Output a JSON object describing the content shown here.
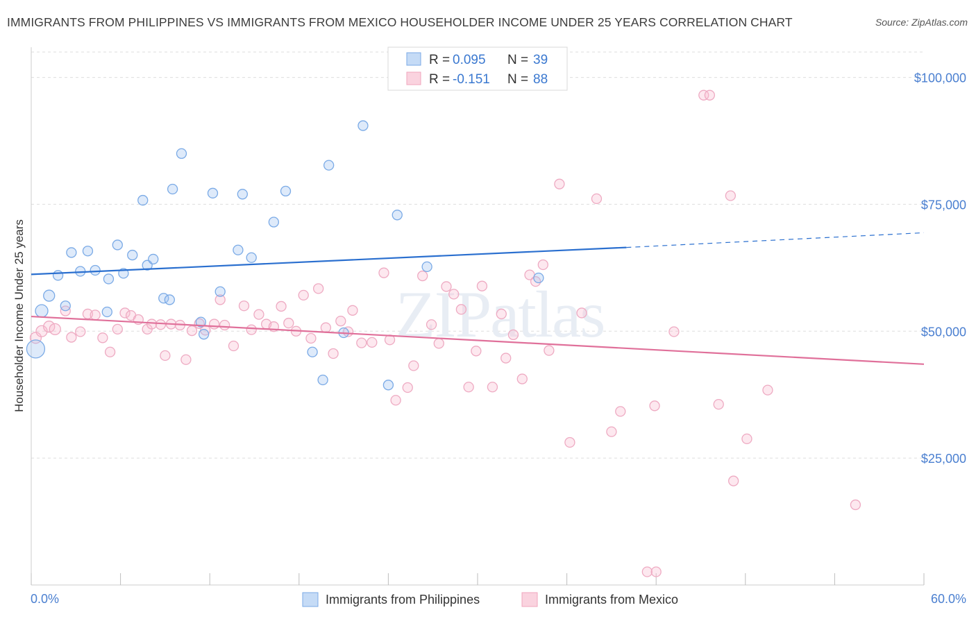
{
  "title": "IMMIGRANTS FROM PHILIPPINES VS IMMIGRANTS FROM MEXICO HOUSEHOLDER INCOME UNDER 25 YEARS CORRELATION CHART",
  "source": "Source: ZipAtlas.com",
  "watermark": "ZIPatlas",
  "colors": {
    "philippines": "#7aaae6",
    "philippines_line": "#2a6fcf",
    "mexico": "#f0a6bd",
    "mexico_line": "#e0709a",
    "axis_label": "#4a7fd0"
  },
  "legend": {
    "rows": [
      {
        "r_label": "R =",
        "r_value": "0.095",
        "n_label": "N =",
        "n_value": "39"
      },
      {
        "r_label": "R =",
        "r_value": "-0.151",
        "n_label": "N =",
        "n_value": "88"
      }
    ]
  },
  "chart_data": {
    "type": "scatter",
    "xlabel": "",
    "ylabel": "Householder Income Under 25 years",
    "xlim": [
      0,
      60
    ],
    "ylim": [
      0,
      105000
    ],
    "x_tick_labels": [
      "0.0%",
      "60.0%"
    ],
    "y_tick_labels": [
      "$100,000",
      "$75,000",
      "$50,000",
      "$25,000"
    ],
    "y_ticks": [
      100000,
      75000,
      50000,
      25000
    ],
    "grid": true,
    "series": [
      {
        "name": "Immigrants from Philippines",
        "trend": {
          "x": [
            0,
            40
          ],
          "y": [
            61200,
            66500
          ],
          "dashed_to": [
            60,
            69400
          ]
        },
        "points": [
          [
            0.3,
            46500,
            26
          ],
          [
            0.7,
            54000,
            18
          ],
          [
            1.2,
            57000,
            16
          ],
          [
            1.8,
            61000,
            14
          ],
          [
            2.3,
            55000,
            14
          ],
          [
            2.7,
            65500,
            14
          ],
          [
            3.3,
            61800,
            14
          ],
          [
            3.8,
            65800,
            14
          ],
          [
            4.3,
            62000,
            14
          ],
          [
            5.1,
            53800,
            14
          ],
          [
            5.2,
            60300,
            14
          ],
          [
            5.8,
            67000,
            14
          ],
          [
            6.2,
            61400,
            14
          ],
          [
            6.8,
            65000,
            14
          ],
          [
            7.5,
            75800,
            14
          ],
          [
            7.8,
            63000,
            14
          ],
          [
            8.2,
            64200,
            14
          ],
          [
            8.9,
            56500,
            14
          ],
          [
            9.3,
            56200,
            14
          ],
          [
            9.5,
            78000,
            14
          ],
          [
            10.1,
            85000,
            14
          ],
          [
            11.4,
            51800,
            14
          ],
          [
            11.6,
            49400,
            14
          ],
          [
            12.2,
            77200,
            14
          ],
          [
            12.7,
            57800,
            14
          ],
          [
            13.9,
            66000,
            14
          ],
          [
            14.2,
            77000,
            14
          ],
          [
            14.8,
            64500,
            14
          ],
          [
            16.3,
            71500,
            14
          ],
          [
            17.1,
            77600,
            14
          ],
          [
            18.9,
            45900,
            14
          ],
          [
            19.6,
            40400,
            14
          ],
          [
            20.0,
            82700,
            14
          ],
          [
            21.0,
            49700,
            14
          ],
          [
            22.3,
            90500,
            14
          ],
          [
            24.0,
            39400,
            14
          ],
          [
            24.6,
            72900,
            14
          ],
          [
            26.6,
            62700,
            14
          ],
          [
            34.1,
            60500,
            14
          ]
        ]
      },
      {
        "name": "Immigrants from Mexico",
        "trend": {
          "x": [
            0,
            60
          ],
          "y": [
            52900,
            43500
          ]
        },
        "points": [
          [
            0.3,
            48700,
            16
          ],
          [
            0.7,
            50000,
            16
          ],
          [
            1.2,
            50900,
            16
          ],
          [
            1.6,
            50400,
            16
          ],
          [
            2.3,
            54000,
            14
          ],
          [
            2.7,
            48800,
            14
          ],
          [
            3.3,
            49900,
            14
          ],
          [
            3.8,
            53400,
            14
          ],
          [
            4.3,
            53200,
            14
          ],
          [
            4.8,
            48700,
            14
          ],
          [
            5.3,
            45900,
            14
          ],
          [
            5.8,
            50400,
            14
          ],
          [
            6.3,
            53600,
            14
          ],
          [
            6.7,
            53100,
            14
          ],
          [
            7.2,
            52300,
            14
          ],
          [
            7.8,
            50400,
            14
          ],
          [
            8.1,
            51400,
            14
          ],
          [
            8.7,
            51300,
            14
          ],
          [
            9.0,
            45200,
            14
          ],
          [
            9.4,
            51400,
            14
          ],
          [
            10.0,
            51200,
            14
          ],
          [
            10.4,
            44400,
            14
          ],
          [
            10.8,
            50100,
            14
          ],
          [
            11.3,
            51500,
            14
          ],
          [
            11.7,
            50200,
            14
          ],
          [
            12.3,
            51400,
            14
          ],
          [
            12.7,
            56200,
            14
          ],
          [
            13.0,
            51200,
            14
          ],
          [
            13.6,
            47100,
            14
          ],
          [
            14.3,
            55000,
            14
          ],
          [
            14.8,
            50300,
            14
          ],
          [
            15.3,
            53300,
            14
          ],
          [
            15.8,
            51400,
            14
          ],
          [
            16.3,
            50900,
            14
          ],
          [
            16.8,
            54900,
            14
          ],
          [
            17.3,
            51600,
            14
          ],
          [
            17.8,
            50000,
            14
          ],
          [
            18.3,
            57100,
            14
          ],
          [
            18.8,
            48600,
            14
          ],
          [
            19.3,
            58400,
            14
          ],
          [
            19.8,
            50700,
            14
          ],
          [
            20.3,
            45600,
            14
          ],
          [
            20.8,
            52000,
            14
          ],
          [
            21.3,
            49900,
            14
          ],
          [
            21.6,
            54100,
            14
          ],
          [
            22.2,
            47700,
            14
          ],
          [
            22.9,
            47800,
            14
          ],
          [
            23.7,
            61500,
            14
          ],
          [
            24.1,
            48300,
            14
          ],
          [
            24.5,
            36400,
            14
          ],
          [
            25.3,
            38900,
            14
          ],
          [
            25.7,
            43200,
            14
          ],
          [
            26.3,
            60900,
            14
          ],
          [
            26.9,
            51300,
            14
          ],
          [
            27.4,
            47600,
            14
          ],
          [
            27.9,
            58800,
            14
          ],
          [
            28.4,
            57300,
            14
          ],
          [
            28.9,
            54300,
            14
          ],
          [
            29.4,
            39000,
            14
          ],
          [
            29.9,
            46100,
            14
          ],
          [
            30.3,
            58900,
            14
          ],
          [
            31.0,
            39000,
            14
          ],
          [
            31.6,
            53400,
            14
          ],
          [
            31.9,
            44700,
            14
          ],
          [
            32.4,
            49300,
            14
          ],
          [
            33.0,
            40600,
            14
          ],
          [
            33.5,
            61100,
            14
          ],
          [
            33.9,
            59800,
            14
          ],
          [
            34.4,
            63100,
            14
          ],
          [
            34.8,
            46200,
            14
          ],
          [
            35.5,
            79000,
            14
          ],
          [
            36.2,
            28100,
            14
          ],
          [
            37.0,
            53600,
            14
          ],
          [
            38.0,
            76100,
            14
          ],
          [
            39.0,
            30200,
            14
          ],
          [
            39.6,
            34200,
            14
          ],
          [
            41.4,
            2600,
            14
          ],
          [
            41.9,
            35300,
            14
          ],
          [
            42.0,
            2600,
            14
          ],
          [
            43.2,
            49900,
            14
          ],
          [
            45.2,
            96500,
            14
          ],
          [
            45.6,
            96500,
            14
          ],
          [
            46.2,
            35600,
            14
          ],
          [
            47.0,
            76700,
            14
          ],
          [
            47.2,
            20500,
            14
          ],
          [
            48.1,
            28800,
            14
          ],
          [
            49.5,
            38400,
            14
          ],
          [
            55.4,
            15800,
            14
          ]
        ]
      }
    ]
  }
}
